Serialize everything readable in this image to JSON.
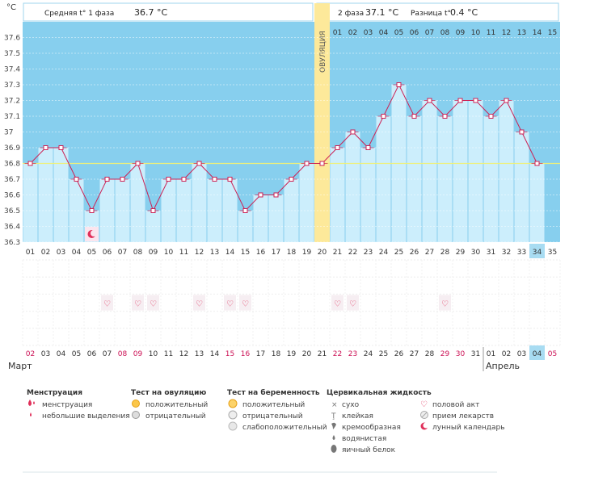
{
  "unit_label": "°C",
  "header": {
    "phase1_label": "Средняя t° 1 фаза",
    "phase1_value": "36.7 °C",
    "phase2_label": "2 фаза",
    "phase2_value": "37.1 °C",
    "diff_label": "Разница t°",
    "diff_value": "0.4 °C"
  },
  "ovulation_label": "ОВУЛЯЦИЯ",
  "months": {
    "march": "Март",
    "april": "Апрель"
  },
  "cycle_days": [
    "01",
    "02",
    "03",
    "04",
    "05",
    "06",
    "07",
    "08",
    "09",
    "10",
    "11",
    "12",
    "13",
    "14",
    "15",
    "16",
    "17",
    "18",
    "19",
    "20",
    "21",
    "22",
    "23",
    "24",
    "25",
    "26",
    "27",
    "28",
    "29",
    "30",
    "31",
    "32",
    "33",
    "34",
    "35"
  ],
  "phase2_days": [
    "01",
    "02",
    "03",
    "04",
    "05",
    "06",
    "07",
    "08",
    "09",
    "10",
    "11",
    "12",
    "13",
    "14",
    "15"
  ],
  "calendar_dates": [
    "02",
    "03",
    "04",
    "05",
    "06",
    "07",
    "08",
    "09",
    "10",
    "11",
    "12",
    "13",
    "14",
    "15",
    "16",
    "17",
    "18",
    "19",
    "20",
    "21",
    "22",
    "23",
    "24",
    "25",
    "26",
    "27",
    "28",
    "29",
    "30",
    "31",
    "01",
    "02",
    "03",
    "04",
    "05"
  ],
  "weekend_dates_idx": [
    0,
    6,
    7,
    13,
    14,
    20,
    21,
    27,
    28,
    34
  ],
  "today_idx": 33,
  "intercourse_days_idx": [
    5,
    7,
    8,
    11,
    13,
    14,
    20,
    21,
    27
  ],
  "moon_day_idx": 4,
  "chart_data": {
    "type": "line",
    "x": [
      1,
      2,
      3,
      4,
      5,
      6,
      7,
      8,
      9,
      10,
      11,
      12,
      13,
      14,
      15,
      16,
      17,
      18,
      19,
      20,
      21,
      22,
      23,
      24,
      25,
      26,
      27,
      28,
      29,
      30,
      31,
      32,
      33,
      34
    ],
    "values": [
      36.8,
      36.9,
      36.9,
      36.7,
      36.5,
      36.7,
      36.7,
      36.8,
      36.5,
      36.7,
      36.7,
      36.8,
      36.7,
      36.7,
      36.5,
      36.6,
      36.6,
      36.7,
      36.8,
      36.8,
      36.9,
      37.0,
      36.9,
      37.1,
      37.3,
      37.1,
      37.2,
      37.1,
      37.2,
      37.2,
      37.1,
      37.2,
      37.0,
      36.8
    ],
    "ylim": [
      36.3,
      37.7
    ],
    "yticks": [
      "36.3",
      "36.4",
      "36.5",
      "36.6",
      "36.7",
      "36.8",
      "36.9",
      "37",
      "37.1",
      "37.2",
      "37.3",
      "37.4",
      "37.5",
      "37.6"
    ],
    "ovulation_day": 20,
    "coverline": 36.8
  },
  "legend": {
    "menstruation": {
      "title": "Менструация",
      "items": [
        "менструация",
        "небольшие выделения"
      ]
    },
    "ovulation_test": {
      "title": "Тест на овуляцию",
      "items": [
        "положительный",
        "отрицательный"
      ]
    },
    "pregnancy_test": {
      "title": "Тест на беременность",
      "items": [
        "положительный",
        "отрицательный",
        "слабоположительный"
      ]
    },
    "cervical": {
      "title": "Цервикальная жидкость",
      "items": [
        "сухо",
        "клейкая",
        "кремообразная",
        "водянистая",
        "яичный белок"
      ]
    },
    "other": {
      "items": [
        "половой акт",
        "прием лекарств",
        "лунный календарь"
      ]
    }
  },
  "colors": {
    "bg_fill": "#87cfee",
    "bar_fill": "#cceefc",
    "ovulation": "#fde99a",
    "line": "#cc2255",
    "weekend": "#cc1155",
    "coverline": "#eef07a"
  }
}
